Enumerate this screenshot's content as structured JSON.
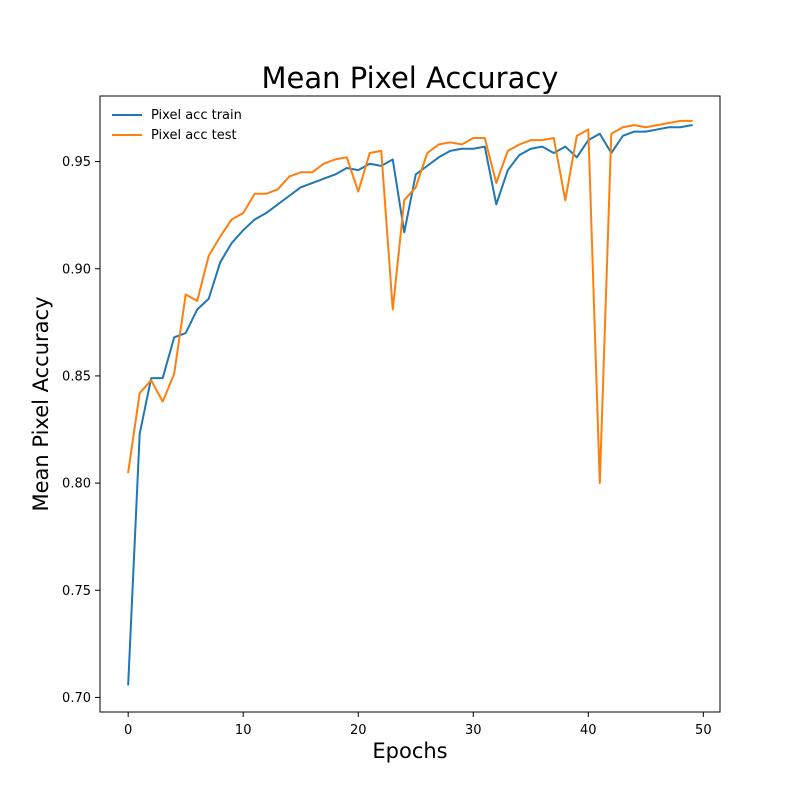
{
  "chart_data": {
    "type": "line",
    "title": "Mean Pixel Accuracy",
    "xlabel": "Epochs",
    "ylabel": "Mean Pixel Accuracy",
    "xlim": [
      -2.45,
      51.45
    ],
    "ylim": [
      0.6932,
      0.9806
    ],
    "xticks": [
      0,
      10,
      20,
      30,
      40,
      50
    ],
    "yticks": [
      0.7,
      0.75,
      0.8,
      0.85,
      0.9,
      0.95
    ],
    "xtick_labels": [
      "0",
      "10",
      "20",
      "30",
      "40",
      "50"
    ],
    "ytick_labels": [
      "0.70",
      "0.75",
      "0.80",
      "0.85",
      "0.90",
      "0.95"
    ],
    "grid": false,
    "legend": "top-left",
    "x": [
      0,
      1,
      2,
      3,
      4,
      5,
      6,
      7,
      8,
      9,
      10,
      11,
      12,
      13,
      14,
      15,
      16,
      17,
      18,
      19,
      20,
      21,
      22,
      23,
      24,
      25,
      26,
      27,
      28,
      29,
      30,
      31,
      32,
      33,
      34,
      35,
      36,
      37,
      38,
      39,
      40,
      41,
      42,
      43,
      44,
      45,
      46,
      47,
      48,
      49
    ],
    "series": [
      {
        "name": "Pixel acc train",
        "color": "#1f77b4",
        "values": [
          0.706,
          0.823,
          0.849,
          0.849,
          0.868,
          0.87,
          0.881,
          0.886,
          0.903,
          0.912,
          0.918,
          0.923,
          0.926,
          0.93,
          0.934,
          0.938,
          0.94,
          0.942,
          0.944,
          0.947,
          0.946,
          0.949,
          0.948,
          0.951,
          0.917,
          0.944,
          0.948,
          0.952,
          0.955,
          0.956,
          0.956,
          0.957,
          0.93,
          0.946,
          0.953,
          0.956,
          0.957,
          0.954,
          0.957,
          0.952,
          0.96,
          0.963,
          0.954,
          0.962,
          0.964,
          0.964,
          0.965,
          0.966,
          0.966,
          0.967
        ]
      },
      {
        "name": "Pixel acc test",
        "color": "#ff7f0e",
        "values": [
          0.805,
          0.842,
          0.848,
          0.838,
          0.851,
          0.888,
          0.885,
          0.906,
          0.915,
          0.923,
          0.926,
          0.935,
          0.935,
          0.937,
          0.943,
          0.945,
          0.945,
          0.949,
          0.951,
          0.952,
          0.936,
          0.954,
          0.955,
          0.881,
          0.932,
          0.938,
          0.954,
          0.958,
          0.959,
          0.958,
          0.961,
          0.961,
          0.94,
          0.955,
          0.958,
          0.96,
          0.96,
          0.961,
          0.932,
          0.962,
          0.965,
          0.8,
          0.963,
          0.966,
          0.967,
          0.966,
          0.967,
          0.968,
          0.969,
          0.969
        ]
      }
    ]
  }
}
